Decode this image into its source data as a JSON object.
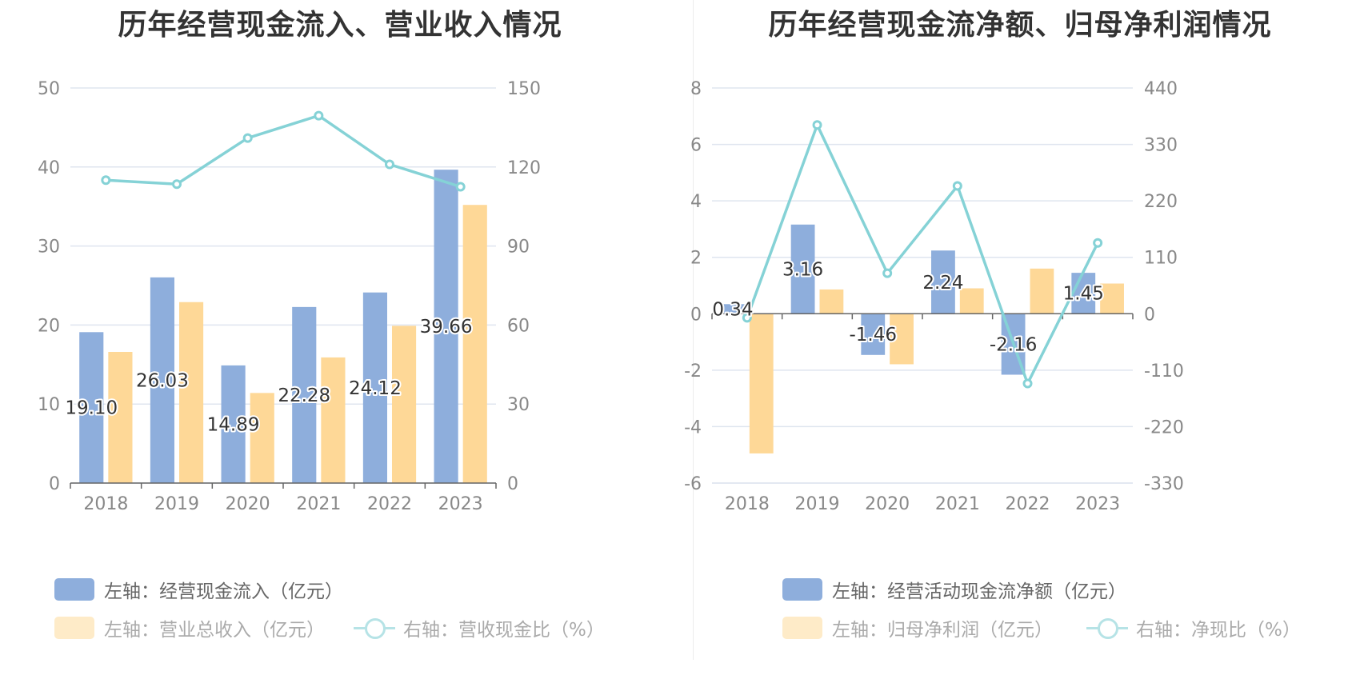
{
  "colors": {
    "cash": "#8eaedc",
    "income": "#fed897",
    "ratio": "#85d2d6",
    "grid": "#dfe5ef",
    "axis": "#666666"
  },
  "chart_data": [
    {
      "type": "bar",
      "title": "历年经营现金流入、营业收入情况",
      "categories": [
        "2018",
        "2019",
        "2020",
        "2021",
        "2022",
        "2023"
      ],
      "left_axis": {
        "range": [
          0,
          50
        ],
        "ticks": [
          "0",
          "10",
          "20",
          "30",
          "40",
          "50"
        ]
      },
      "right_axis": {
        "range": [
          0,
          150
        ],
        "ticks": [
          "0",
          "30",
          "60",
          "90",
          "120",
          "150"
        ]
      },
      "series": [
        {
          "name": "左轴：经营现金流入（亿元）",
          "axis": "left",
          "kind": "bar",
          "values": [
            19.1,
            26.03,
            14.89,
            22.28,
            24.12,
            39.66
          ],
          "labels": [
            "19.10",
            "26.03",
            "14.89",
            "22.28",
            "24.12",
            "39.66"
          ]
        },
        {
          "name": "左轴：营业总收入（亿元）",
          "axis": "left",
          "kind": "bar",
          "values": [
            16.6,
            22.9,
            11.4,
            15.9,
            19.9,
            35.2
          ]
        },
        {
          "name": "右轴：营收现金比（%）",
          "axis": "right",
          "kind": "line",
          "values": [
            115.0,
            113.5,
            131.0,
            139.5,
            121.0,
            112.5
          ]
        }
      ],
      "legend": "bottom"
    },
    {
      "type": "bar",
      "title": "历年经营现金流净额、归母净利润情况",
      "categories": [
        "2018",
        "2019",
        "2020",
        "2021",
        "2022",
        "2023"
      ],
      "left_axis": {
        "range": [
          -6,
          8
        ],
        "ticks": [
          "-6",
          "-4",
          "-2",
          "0",
          "2",
          "4",
          "6",
          "8"
        ]
      },
      "right_axis": {
        "range": [
          -330,
          440
        ],
        "ticks": [
          "-330",
          "-220",
          "-110",
          "0",
          "110",
          "220",
          "330",
          "440"
        ]
      },
      "series": [
        {
          "name": "左轴：经营活动现金流净额（亿元）",
          "axis": "left",
          "kind": "bar",
          "values": [
            0.34,
            3.16,
            -1.46,
            2.24,
            -2.16,
            1.45
          ],
          "labels": [
            "0.34",
            "3.16",
            "-1.46",
            "2.24",
            "-2.16",
            "1.45"
          ]
        },
        {
          "name": "左轴：归母净利润（亿元）",
          "axis": "left",
          "kind": "bar",
          "values": [
            -4.95,
            0.86,
            -1.79,
            0.9,
            1.6,
            1.07
          ]
        },
        {
          "name": "右轴：净现比（%）",
          "axis": "right",
          "kind": "line",
          "values": [
            -8,
            368,
            79,
            249,
            -136,
            138
          ]
        }
      ],
      "legend": "bottom"
    }
  ]
}
